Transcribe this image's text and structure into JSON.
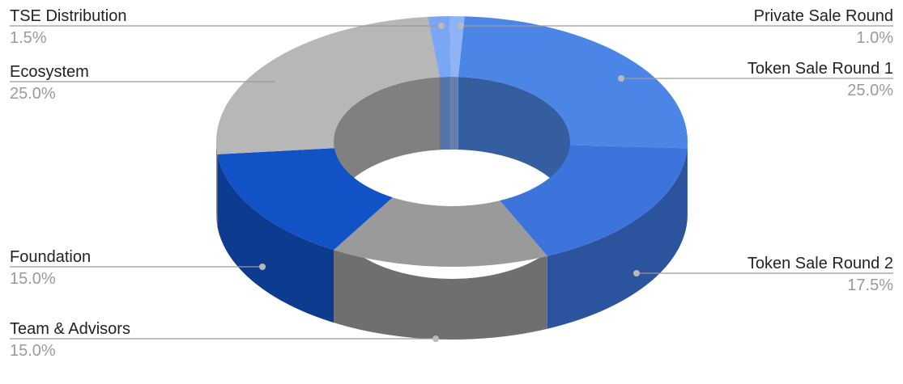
{
  "chart_data": {
    "type": "pie",
    "variant": "3d-donut",
    "title": "",
    "slices": [
      {
        "name": "Private Sale Round",
        "value": 1.0,
        "label": "1.0%",
        "color": "#8fb4f6"
      },
      {
        "name": "Token Sale Round 1",
        "value": 25.0,
        "label": "25.0%",
        "color": "#4b86e6"
      },
      {
        "name": "Token Sale Round 2",
        "value": 17.5,
        "label": "17.5%",
        "color": "#3d74dc"
      },
      {
        "name": "Team & Advisors",
        "value": 15.0,
        "label": "15.0%",
        "color": "#9a9a9a"
      },
      {
        "name": "Foundation",
        "value": 15.0,
        "label": "15.0%",
        "color": "#1152c7"
      },
      {
        "name": "Ecosystem",
        "value": 25.0,
        "label": "25.0%",
        "color": "#b7b7b7"
      },
      {
        "name": "TSE Distribution",
        "value": 1.5,
        "label": "1.5%",
        "color": "#7aa6f3"
      }
    ],
    "legend": "none",
    "label_placement": "outside-with-leader-lines"
  }
}
